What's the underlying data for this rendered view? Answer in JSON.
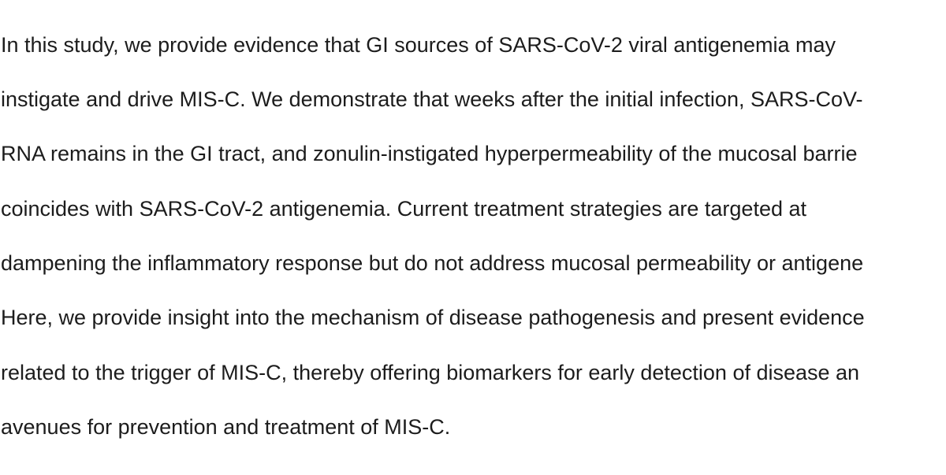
{
  "document": {
    "paragraph": {
      "lines": [
        "In this study, we provide evidence that GI sources of SARS-CoV-2 viral antigenemia may",
        "instigate and drive MIS-C. We demonstrate that weeks after the initial infection, SARS-CoV-",
        "RNA remains in the GI tract, and zonulin-instigated hyperpermeability of the mucosal barrie",
        "coincides with SARS-CoV-2 antigenemia. Current treatment strategies are targeted at",
        "dampening the inflammatory response but do not address mucosal permeability or antigene",
        "Here, we provide insight into the mechanism of disease pathogenesis and present evidence",
        "related to the trigger of MIS-C, thereby offering biomarkers for early detection of disease an",
        "avenues for prevention and treatment of MIS-C."
      ]
    }
  }
}
